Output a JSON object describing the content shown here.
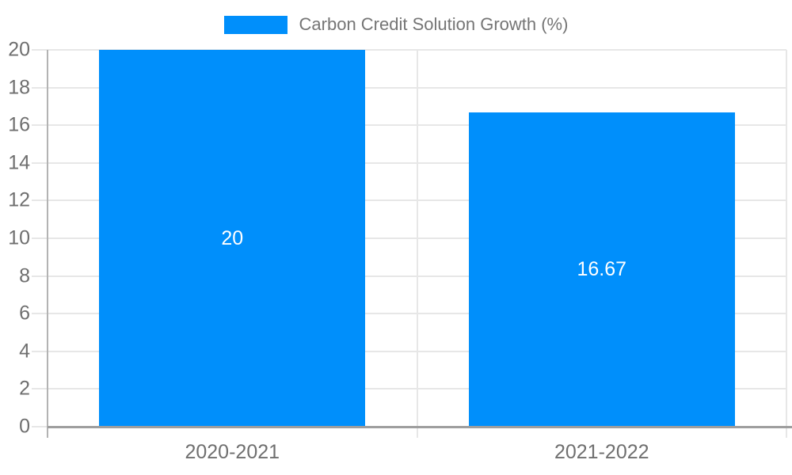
{
  "legend": {
    "label": "Carbon Credit Solution Growth (%)"
  },
  "colors": {
    "bar": "#008FFB",
    "x_axis_line": "#9e9e9e",
    "y_axis_line": "#b3b3b3",
    "grid_line": "#e7e7e7",
    "tick_label_text": "#6f6f6f",
    "legend_text": "#757575",
    "data_label_text": "#ffffff",
    "background": "#ffffff"
  },
  "chart_data": {
    "type": "bar",
    "title": "Carbon Credit Solution Growth (%)",
    "categories": [
      "2020-2021",
      "2021-2022"
    ],
    "series": [
      {
        "name": "Carbon Credit Solution Growth (%)",
        "values": [
          20,
          16.67
        ]
      }
    ],
    "data_labels": [
      "20",
      "16.67"
    ],
    "xlabel": "",
    "ylabel": "",
    "ylim": [
      0,
      20
    ],
    "ytick_step": 2,
    "ytick_labels": [
      "0",
      "2",
      "4",
      "6",
      "8",
      "10",
      "12",
      "14",
      "16",
      "18",
      "20"
    ],
    "grid": true,
    "legend_position": "top"
  }
}
